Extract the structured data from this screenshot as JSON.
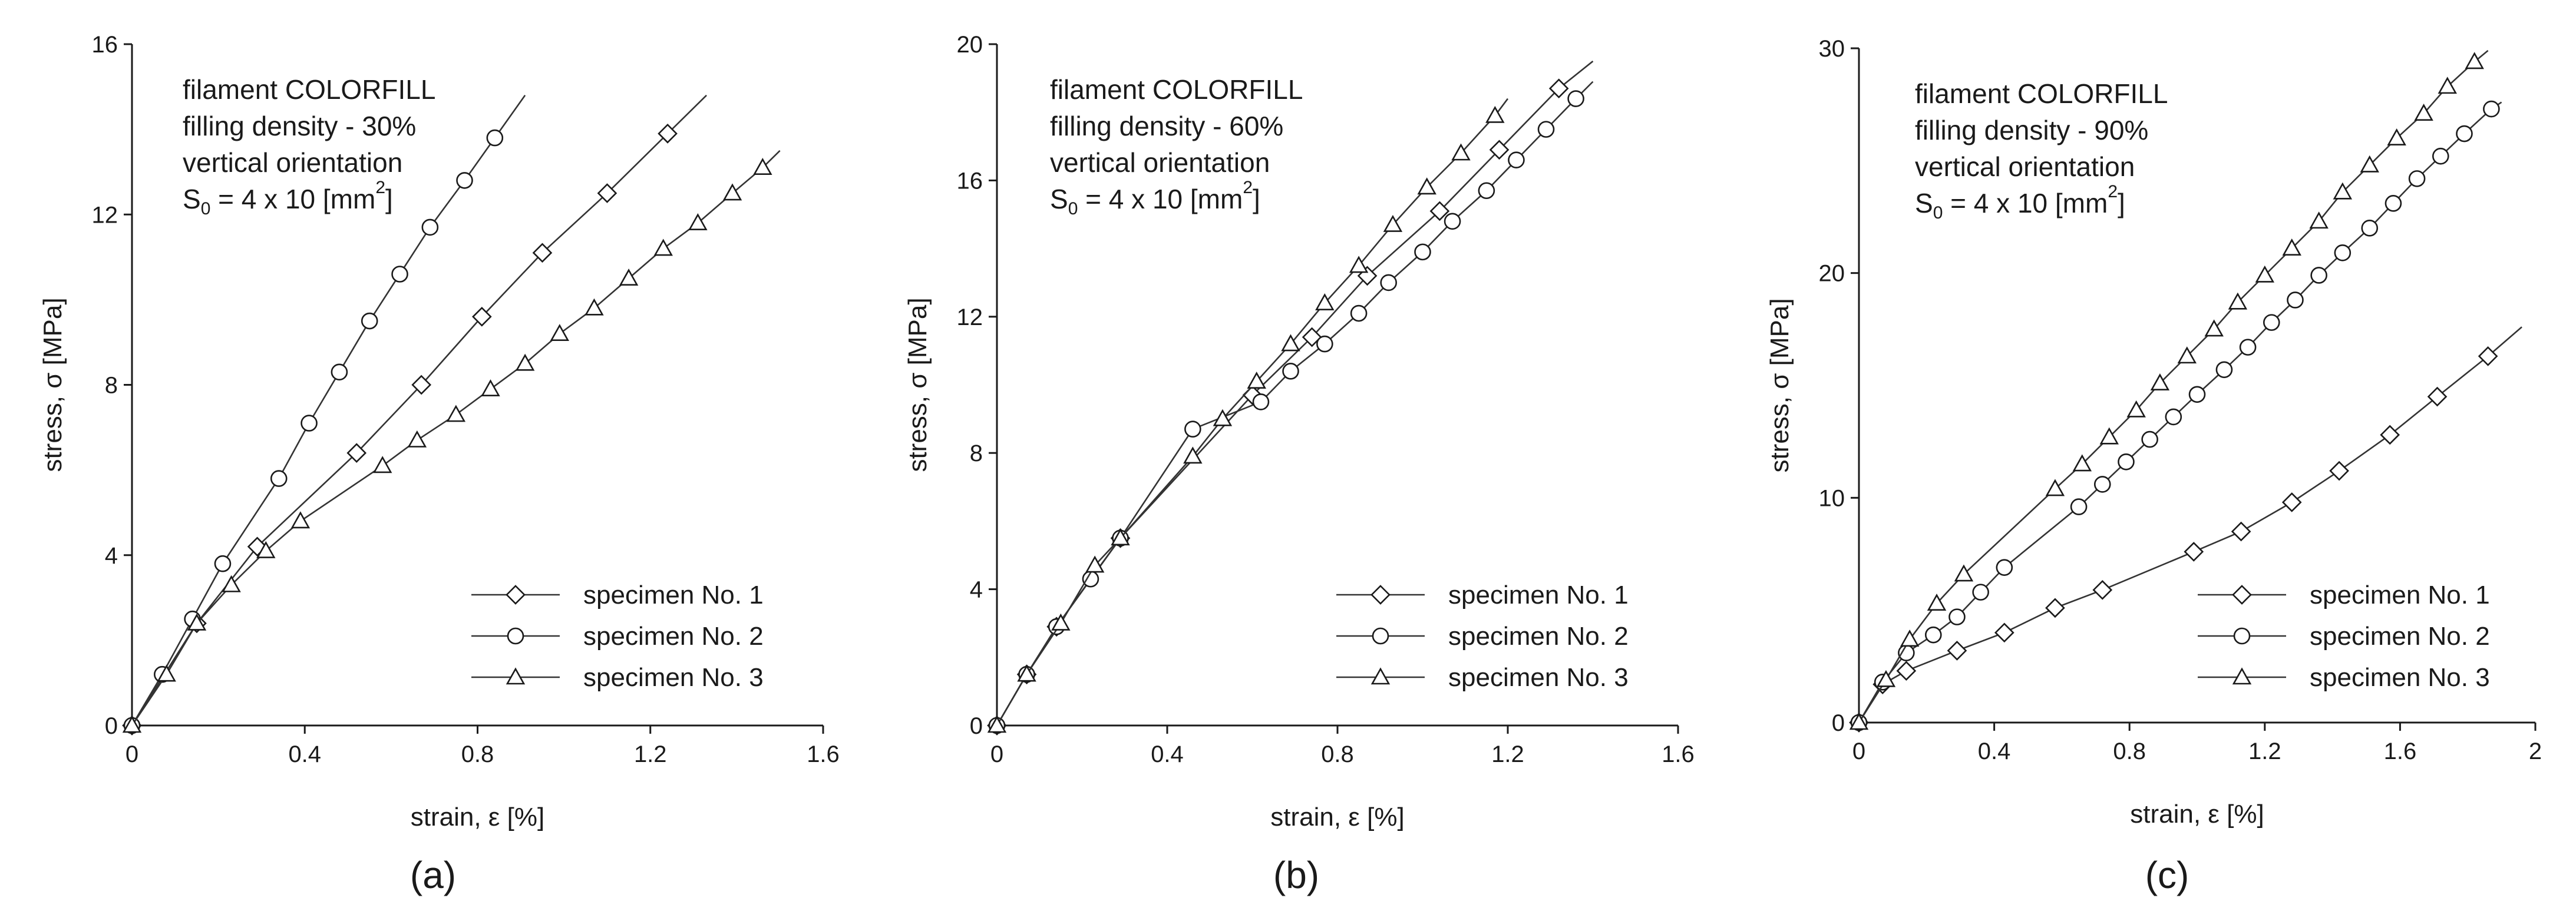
{
  "chart_data": [
    {
      "type": "line",
      "panel_label": "(a)",
      "xlabel": "strain, ε [%]",
      "ylabel": "stress, σ [MPa]",
      "xlim": [
        0,
        1.6
      ],
      "ylim": [
        0,
        16
      ],
      "xticks": [
        0,
        0.4,
        0.8,
        1.2,
        1.6
      ],
      "yticks": [
        0,
        4,
        8,
        12,
        16
      ],
      "xtick_labels": [
        "0",
        "0.4",
        "0.8",
        "1.2",
        "1.6"
      ],
      "ytick_labels": [
        "0",
        "4",
        "8",
        "12",
        "16"
      ],
      "annotation": [
        "filament COLORFILL",
        "filling density - 30%",
        "vertical orientation",
        "S0 = 4 x 10 [mm2]"
      ],
      "legend_position": "bottom-right",
      "series": [
        {
          "name": "specimen No. 1",
          "marker": "diamond",
          "x": [
            0,
            0.15,
            0.29,
            0.52,
            0.67,
            0.81,
            0.95,
            1.1,
            1.24
          ],
          "y": [
            0,
            2.4,
            4.2,
            6.4,
            8.0,
            9.6,
            11.1,
            12.5,
            13.9
          ],
          "line_end": [
            1.33,
            14.8
          ]
        },
        {
          "name": "specimen No. 2",
          "marker": "circle",
          "x": [
            0,
            0.07,
            0.14,
            0.21,
            0.34,
            0.41,
            0.48,
            0.55,
            0.62,
            0.69,
            0.77,
            0.84
          ],
          "y": [
            0,
            1.2,
            2.5,
            3.8,
            5.8,
            7.1,
            8.3,
            9.5,
            10.6,
            11.7,
            12.8,
            13.8
          ],
          "line_end": [
            0.91,
            14.8
          ]
        },
        {
          "name": "specimen No. 3",
          "marker": "triangle",
          "x": [
            0,
            0.08,
            0.15,
            0.23,
            0.31,
            0.39,
            0.58,
            0.66,
            0.75,
            0.83,
            0.91,
            0.99,
            1.07,
            1.15,
            1.23,
            1.31,
            1.39,
            1.46
          ],
          "y": [
            0,
            1.2,
            2.4,
            3.3,
            4.1,
            4.8,
            6.1,
            6.7,
            7.3,
            7.9,
            8.5,
            9.2,
            9.8,
            10.5,
            11.2,
            11.8,
            12.5,
            13.1
          ],
          "line_end": [
            1.5,
            13.5
          ]
        }
      ]
    },
    {
      "type": "line",
      "panel_label": "(b)",
      "xlabel": "strain, ε [%]",
      "ylabel": "stress, σ [MPa]",
      "xlim": [
        0,
        1.6
      ],
      "ylim": [
        0,
        20
      ],
      "xticks": [
        0,
        0.4,
        0.8,
        1.2,
        1.6
      ],
      "yticks": [
        0,
        4,
        8,
        12,
        16,
        20
      ],
      "xtick_labels": [
        "0",
        "0.4",
        "0.8",
        "1.2",
        "1.6"
      ],
      "ytick_labels": [
        "0",
        "4",
        "8",
        "12",
        "16",
        "20"
      ],
      "annotation": [
        "filament COLORFILL",
        "filling density - 60%",
        "vertical orientation",
        "S0 = 4 x 10 [mm2]"
      ],
      "legend_position": "bottom-right",
      "series": [
        {
          "name": "specimen No. 1",
          "marker": "diamond",
          "x": [
            0,
            0.07,
            0.14,
            0.29,
            0.6,
            0.74,
            0.87,
            1.04,
            1.18,
            1.32
          ],
          "y": [
            0,
            1.5,
            2.9,
            5.5,
            9.7,
            11.4,
            13.2,
            15.1,
            16.9,
            18.7
          ],
          "line_end": [
            1.4,
            19.5
          ]
        },
        {
          "name": "specimen No. 2",
          "marker": "circle",
          "x": [
            0,
            0.07,
            0.14,
            0.22,
            0.29,
            0.46,
            0.62,
            0.69,
            0.77,
            0.85,
            0.92,
            1.0,
            1.07,
            1.15,
            1.22,
            1.29,
            1.36
          ],
          "y": [
            0,
            1.5,
            2.9,
            4.3,
            5.5,
            8.7,
            9.5,
            10.4,
            11.2,
            12.1,
            13.0,
            13.9,
            14.8,
            15.7,
            16.6,
            17.5,
            18.4
          ],
          "line_end": [
            1.4,
            18.9
          ]
        },
        {
          "name": "specimen No. 3",
          "marker": "triangle",
          "x": [
            0,
            0.07,
            0.15,
            0.23,
            0.29,
            0.46,
            0.53,
            0.61,
            0.69,
            0.77,
            0.85,
            0.93,
            1.01,
            1.09,
            1.17
          ],
          "y": [
            0,
            1.5,
            3.0,
            4.7,
            5.5,
            7.9,
            9.0,
            10.1,
            11.2,
            12.4,
            13.5,
            14.7,
            15.8,
            16.8,
            17.9
          ],
          "line_end": [
            1.2,
            18.4
          ]
        }
      ]
    },
    {
      "type": "line",
      "panel_label": "(c)",
      "xlabel": "strain, ε [%]",
      "ylabel": "stress, σ [MPa]",
      "xlim": [
        0,
        2
      ],
      "ylim": [
        0,
        30
      ],
      "xticks": [
        0,
        0.4,
        0.8,
        1.2,
        1.6,
        2
      ],
      "yticks": [
        0,
        10,
        20,
        30
      ],
      "xtick_labels": [
        "0",
        "0.4",
        "0.8",
        "1.2",
        "1.6",
        "2"
      ],
      "ytick_labels": [
        "0",
        "10",
        "20",
        "30"
      ],
      "annotation": [
        "filament COLORFILL",
        "filling density - 90%",
        "vertical orientation",
        "S0 = 4 x 10 [mm2]"
      ],
      "legend_position": "bottom-right",
      "series": [
        {
          "name": "specimen No. 1",
          "marker": "diamond",
          "x": [
            0,
            0.07,
            0.14,
            0.29,
            0.43,
            0.58,
            0.72,
            0.99,
            1.13,
            1.28,
            1.42,
            1.57,
            1.71,
            1.86
          ],
          "y": [
            0,
            1.7,
            2.3,
            3.2,
            4.0,
            5.1,
            5.9,
            7.6,
            8.5,
            9.8,
            11.2,
            12.8,
            14.5,
            16.3
          ],
          "line_end": [
            1.96,
            17.6
          ]
        },
        {
          "name": "specimen No. 2",
          "marker": "circle",
          "x": [
            0,
            0.07,
            0.14,
            0.22,
            0.29,
            0.36,
            0.43,
            0.65,
            0.72,
            0.79,
            0.86,
            0.93,
            1.0,
            1.08,
            1.15,
            1.22,
            1.29,
            1.36,
            1.43,
            1.51,
            1.58,
            1.65,
            1.72,
            1.79,
            1.87
          ],
          "y": [
            0,
            1.8,
            3.1,
            3.9,
            4.7,
            5.8,
            6.9,
            9.6,
            10.6,
            11.6,
            12.6,
            13.6,
            14.6,
            15.7,
            16.7,
            17.8,
            18.8,
            19.9,
            20.9,
            22.0,
            23.1,
            24.2,
            25.2,
            26.2,
            27.3
          ],
          "line_end": [
            1.9,
            27.6
          ]
        },
        {
          "name": "specimen No. 3",
          "marker": "triangle",
          "x": [
            0,
            0.08,
            0.15,
            0.23,
            0.31,
            0.58,
            0.66,
            0.74,
            0.82,
            0.89,
            0.97,
            1.05,
            1.12,
            1.2,
            1.28,
            1.36,
            1.43,
            1.51,
            1.59,
            1.67,
            1.74,
            1.82
          ],
          "y": [
            0,
            1.9,
            3.7,
            5.3,
            6.6,
            10.4,
            11.5,
            12.7,
            13.9,
            15.1,
            16.3,
            17.5,
            18.7,
            19.9,
            21.1,
            22.3,
            23.6,
            24.8,
            26.0,
            27.1,
            28.3,
            29.4
          ],
          "line_end": [
            1.86,
            29.9
          ]
        }
      ]
    }
  ]
}
